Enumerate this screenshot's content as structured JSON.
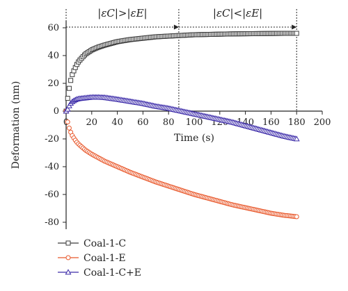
{
  "chart_data": {
    "type": "scatter",
    "xlabel": "Time (s)",
    "ylabel": "Deformation (nm)",
    "xlim": [
      0,
      200
    ],
    "ylim": [
      -85,
      65
    ],
    "xticks": [
      0,
      20,
      40,
      60,
      80,
      100,
      120,
      140,
      160,
      180,
      200
    ],
    "yticks": [
      -80,
      -60,
      -40,
      -20,
      0,
      20,
      40,
      60
    ],
    "grid": false,
    "legend_position": "bottom-left",
    "annotations": [
      {
        "text": "|εC|>|εE|",
        "from_x": 0,
        "to_x": 88
      },
      {
        "text": "|εC|<|εE|",
        "from_x": 88,
        "to_x": 180
      }
    ],
    "divider_x": 88,
    "series": [
      {
        "name": "Coal-1-C",
        "marker": "square",
        "color": "#3a3a3a",
        "x": [
          0,
          1,
          2,
          3,
          5,
          8,
          10,
          15,
          20,
          25,
          30,
          40,
          50,
          60,
          70,
          80,
          90,
          100,
          110,
          120,
          130,
          140,
          150,
          160,
          170,
          180
        ],
        "y": [
          0,
          8,
          14,
          20,
          27,
          33,
          36,
          41,
          44,
          46,
          47.5,
          50,
          51.5,
          52.5,
          53.5,
          54,
          54.5,
          55,
          55.2,
          55.4,
          55.6,
          55.7,
          55.8,
          55.9,
          56,
          56
        ]
      },
      {
        "name": "Coal-1-E",
        "marker": "circle",
        "color": "#e8572a",
        "x": [
          0,
          1,
          2,
          3,
          5,
          8,
          10,
          15,
          20,
          25,
          30,
          40,
          50,
          60,
          70,
          80,
          90,
          100,
          110,
          120,
          130,
          140,
          150,
          160,
          170,
          180
        ],
        "y": [
          0,
          -7,
          -11,
          -14,
          -18,
          -22,
          -24,
          -28,
          -31,
          -33.5,
          -36,
          -40,
          -44,
          -47.5,
          -51,
          -54,
          -57,
          -60,
          -62.5,
          -65,
          -67.5,
          -69.5,
          -71.5,
          -73.5,
          -75,
          -76
        ]
      },
      {
        "name": "Coal-1-C+E",
        "marker": "triangle",
        "color": "#3b2aa8",
        "x": [
          0,
          1,
          2,
          3,
          5,
          8,
          10,
          15,
          20,
          25,
          30,
          40,
          50,
          60,
          70,
          80,
          90,
          100,
          110,
          120,
          130,
          140,
          150,
          160,
          170,
          180
        ],
        "y": [
          0,
          1,
          3,
          5,
          7,
          8.5,
          9,
          9.5,
          10,
          10,
          9.8,
          8.5,
          7,
          5.5,
          3.5,
          2,
          0,
          -2,
          -4,
          -6,
          -8,
          -10.5,
          -13,
          -15.5,
          -18,
          -20
        ]
      }
    ]
  }
}
